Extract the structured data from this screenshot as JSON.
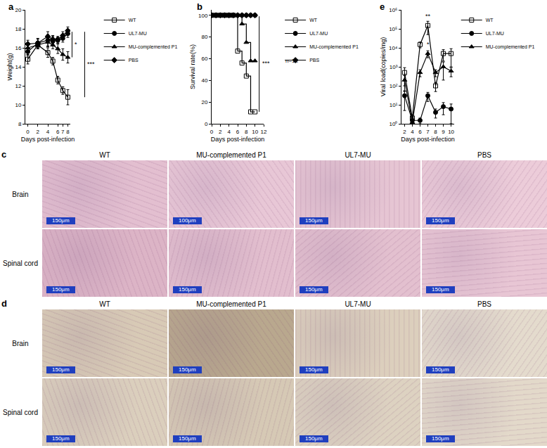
{
  "chart_data": [
    {
      "panel": "a",
      "type": "line",
      "xlabel": "Days post-infection",
      "ylabel": "Weight(g)",
      "x": [
        0,
        2,
        4,
        5,
        6,
        7,
        8
      ],
      "xlim": [
        -0.5,
        8.5
      ],
      "xticks": [
        0,
        2,
        4,
        6,
        7,
        8
      ],
      "ylim": [
        8,
        20
      ],
      "yticks": [
        8,
        10,
        12,
        14,
        16,
        18,
        20
      ],
      "grid": false,
      "legend": "right",
      "series": [
        {
          "name": "WT",
          "color": "#000000",
          "marker": "square-open",
          "values": [
            14.8,
            16.3,
            15.5,
            14.6,
            12.6,
            11.5,
            10.8
          ],
          "errors": [
            0.5,
            0.4,
            0.5,
            0.4,
            0.4,
            0.4,
            0.8
          ]
        },
        {
          "name": "UL7-MU",
          "color": "#000000",
          "marker": "circle",
          "values": [
            15.6,
            16.5,
            16.8,
            16.7,
            16.8,
            17.0,
            17.5
          ],
          "errors": [
            0.4,
            0.5,
            0.6,
            0.5,
            0.3,
            0.4,
            0.4
          ]
        },
        {
          "name": "MU-complemented P1",
          "color": "#000000",
          "marker": "triangle-up",
          "values": [
            16.0,
            16.3,
            16.6,
            16.3,
            15.9,
            15.3,
            15.0
          ],
          "errors": [
            0.5,
            0.4,
            0.5,
            0.4,
            0.5,
            0.6,
            0.6
          ]
        },
        {
          "name": "PBS",
          "color": "#000000",
          "marker": "diamond",
          "values": [
            16.4,
            16.5,
            17.2,
            16.9,
            16.9,
            17.3,
            17.8
          ],
          "errors": [
            0.4,
            0.4,
            0.5,
            0.4,
            0.3,
            0.4,
            0.4
          ]
        }
      ],
      "significance": [
        {
          "text": "*",
          "between": [
            "MU-complemented P1",
            "PBS"
          ],
          "at": 8
        },
        {
          "text": "***",
          "between": [
            "WT",
            "PBS"
          ],
          "at": 8
        }
      ]
    },
    {
      "panel": "b",
      "type": "line",
      "line_style": "step",
      "xlabel": "Days post-infection",
      "ylabel": "Survival rate(%)",
      "x": [
        0,
        1,
        2,
        3,
        4,
        5,
        6,
        7,
        8,
        9,
        10
      ],
      "xlim": [
        0,
        12
      ],
      "xticks": [
        0,
        2,
        4,
        6,
        8,
        10,
        12
      ],
      "ylim": [
        0,
        105
      ],
      "yticks": [
        0,
        20,
        40,
        60,
        80,
        100
      ],
      "grid": false,
      "legend": "right",
      "series": [
        {
          "name": "WT",
          "color": "#000000",
          "marker": "square-open",
          "values": [
            100,
            100,
            100,
            100,
            100,
            100,
            67,
            56,
            44,
            11,
            11
          ]
        },
        {
          "name": "UL7-MU",
          "color": "#000000",
          "marker": "circle",
          "values": [
            100,
            100,
            100,
            100,
            100,
            100,
            100,
            100,
            100,
            100,
            100
          ]
        },
        {
          "name": "MU-complemented P1",
          "color": "#000000",
          "marker": "triangle-up",
          "values": [
            100,
            100,
            100,
            100,
            100,
            100,
            100,
            92,
            75,
            58,
            58
          ]
        },
        {
          "name": "PBS",
          "color": "#000000",
          "marker": "diamond",
          "values": [
            100,
            100,
            100,
            100,
            100,
            100,
            100,
            100,
            100,
            100,
            100
          ]
        }
      ],
      "significance": [
        {
          "text": "***",
          "between": [
            "WT",
            "PBS"
          ],
          "at": 10
        }
      ],
      "note": "n=12"
    },
    {
      "panel": "e",
      "type": "line",
      "xlabel": "Days post-infection",
      "ylabel": "Viral load(copies/mg)",
      "categories": [
        "2",
        "4",
        "6",
        "7",
        "8",
        "9",
        "10"
      ],
      "log": "y",
      "ylim": [
        1,
        1000000
      ],
      "yticks": [
        {
          "value": 1,
          "label": "10⁰"
        },
        {
          "value": 10,
          "label": "10¹"
        },
        {
          "value": 100,
          "label": "10²"
        },
        {
          "value": 1000,
          "label": "10³"
        },
        {
          "value": 10000,
          "label": "10⁴"
        },
        {
          "value": 100000,
          "label": "10⁵"
        },
        {
          "value": 1000000,
          "label": "10⁶"
        }
      ],
      "grid": false,
      "legend": "right",
      "series": [
        {
          "name": "WT",
          "color": "#000000",
          "marker": "square-open",
          "values": [
            500,
            2,
            15000,
            150000,
            100,
            5000,
            5000
          ],
          "errors": [
            400,
            1,
            5000,
            100000,
            50,
            3000,
            4000
          ]
        },
        {
          "name": "UL7-MU",
          "color": "#000000",
          "marker": "circle",
          "values": [
            30,
            1.5,
            1.5,
            30,
            4,
            8,
            6
          ],
          "errors": [
            25,
            0.5,
            0.5,
            15,
            2,
            5,
            5
          ]
        },
        {
          "name": "MU-complemented P1",
          "color": "#000000",
          "marker": "triangle-up",
          "values": [
            200,
            1.2,
            500,
            5000,
            500,
            1000,
            600
          ],
          "errors": [
            150,
            0.3,
            200,
            2000,
            200,
            800,
            300
          ]
        }
      ],
      "significance": [
        {
          "text": "**",
          "above": "WT",
          "at": "7"
        },
        {
          "text": "*",
          "above": "MU-complemented P1",
          "at": "7"
        }
      ]
    }
  ],
  "histology": [
    {
      "panel": "c",
      "columns": [
        "WT",
        "MU-complemented P1",
        "UL7-MU",
        "PBS"
      ],
      "rows": [
        {
          "label": "Brain",
          "scale_bars": [
            "150μm",
            "100μm",
            "150μm",
            "150μm"
          ]
        },
        {
          "label": "Spinal cord",
          "scale_bars": [
            "150μm",
            "150μm",
            "150μm",
            "150μm"
          ]
        }
      ]
    },
    {
      "panel": "d",
      "columns": [
        "WT",
        "MU-complemented P1",
        "UL7-MU",
        "PBS"
      ],
      "rows": [
        {
          "label": "Brain",
          "scale_bars": [
            "150μm",
            "150μm",
            "150μm",
            "150μm"
          ]
        },
        {
          "label": "Spinal cord",
          "scale_bars": [
            "150μm",
            "150μm",
            "150μm",
            "150μm"
          ]
        }
      ]
    }
  ]
}
